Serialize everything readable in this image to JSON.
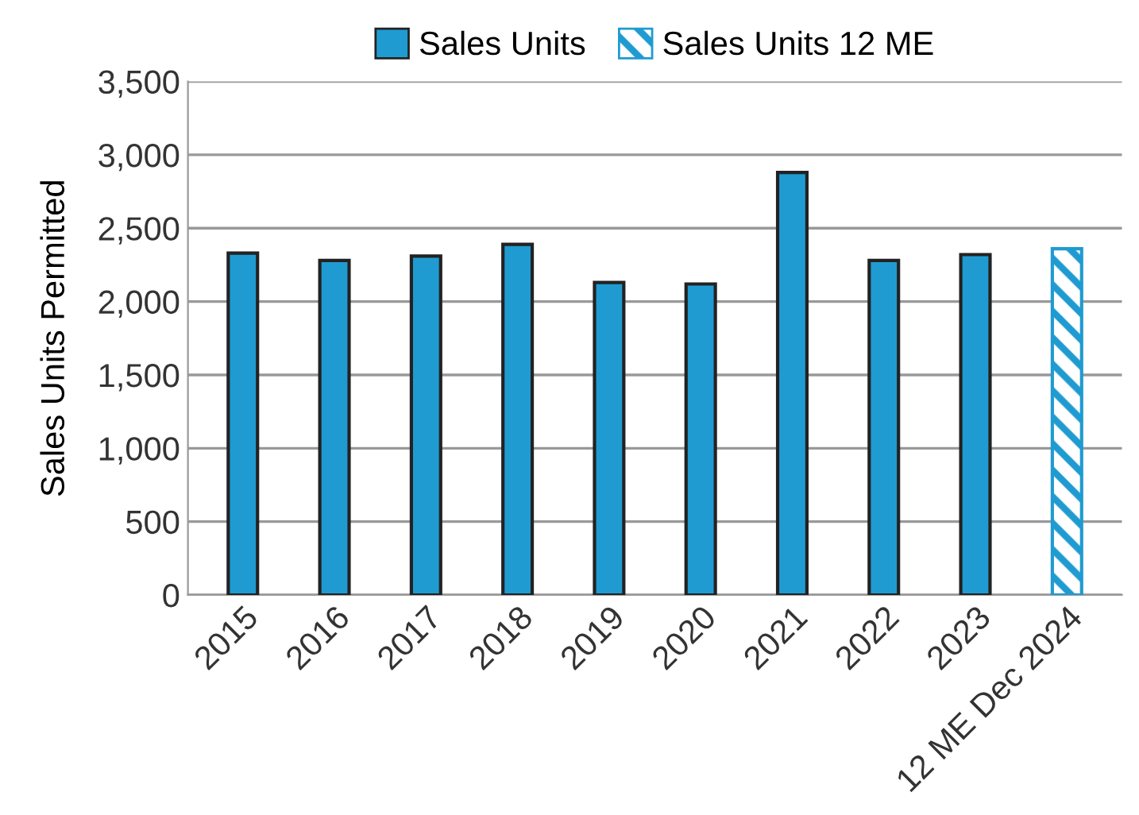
{
  "chart_data": {
    "type": "bar",
    "ylabel": "Sales Units Permitted",
    "categories": [
      "2015",
      "2016",
      "2017",
      "2018",
      "2019",
      "2020",
      "2021",
      "2022",
      "2023",
      "12 ME Dec 2024"
    ],
    "series": [
      {
        "name": "Sales Units",
        "color": "#1f9bd1",
        "values": [
          2330,
          2280,
          2310,
          2390,
          2130,
          2120,
          2880,
          2280,
          2320,
          null
        ]
      },
      {
        "name": "Sales Units 12 ME",
        "color": "#1f9bd1",
        "values": [
          null,
          null,
          null,
          null,
          null,
          null,
          null,
          null,
          null,
          2360
        ]
      }
    ],
    "ylim": [
      0,
      3500
    ],
    "yticks": [
      {
        "value": 0,
        "label": "0"
      },
      {
        "value": 500,
        "label": "500"
      },
      {
        "value": 1000,
        "label": "1,000"
      },
      {
        "value": 1500,
        "label": "1,500"
      },
      {
        "value": 2000,
        "label": "2,000"
      },
      {
        "value": 2500,
        "label": "2,500"
      },
      {
        "value": 3000,
        "label": "3,000"
      },
      {
        "value": 3500,
        "label": "3,500"
      }
    ],
    "grid": "y",
    "legend": "top"
  }
}
